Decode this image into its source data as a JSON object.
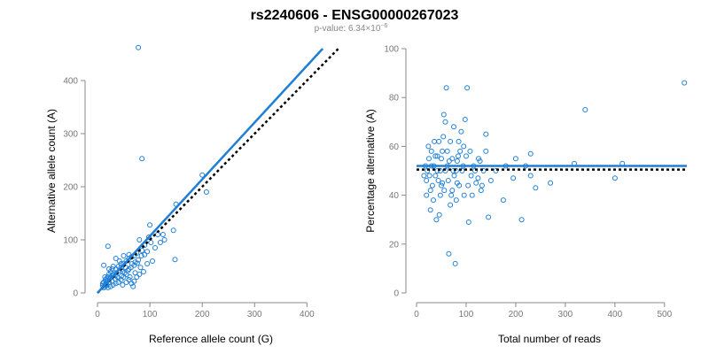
{
  "header": {
    "title": "rs2240606 - ENSG00000267023",
    "pvalue_label": "p-value: 6.34×10",
    "pvalue_exponent": "−6"
  },
  "colors": {
    "points": "#1f7fd6",
    "fit_line": "#1f7fd6",
    "reference_line": "#000000"
  },
  "chart_data": [
    {
      "type": "scatter",
      "title": "",
      "xlabel": "Reference allele count (G)",
      "ylabel": "Alternative allele count (A)",
      "xlim": [
        0,
        440
      ],
      "ylim": [
        0,
        460
      ],
      "xticks": [
        0,
        100,
        200,
        300,
        400
      ],
      "yticks": [
        0,
        100,
        200,
        300,
        400
      ],
      "fit_line": {
        "x": [
          0,
          430
        ],
        "y": [
          0,
          460
        ]
      },
      "reference_line": {
        "x": [
          0,
          460
        ],
        "y": [
          0,
          460
        ]
      },
      "points": [
        [
          78,
          462
        ],
        [
          85,
          253
        ],
        [
          200,
          222
        ],
        [
          208,
          190
        ],
        [
          150,
          167
        ],
        [
          148,
          63
        ],
        [
          145,
          118
        ],
        [
          125,
          110
        ],
        [
          128,
          100
        ],
        [
          115,
          110
        ],
        [
          100,
          128
        ],
        [
          98,
          105
        ],
        [
          102,
          95
        ],
        [
          90,
          90
        ],
        [
          85,
          80
        ],
        [
          80,
          100
        ],
        [
          75,
          75
        ],
        [
          70,
          70
        ],
        [
          65,
          68
        ],
        [
          60,
          65
        ],
        [
          55,
          60
        ],
        [
          50,
          55
        ],
        [
          45,
          55
        ],
        [
          40,
          50
        ],
        [
          35,
          45
        ],
        [
          30,
          50
        ],
        [
          28,
          45
        ],
        [
          25,
          40
        ],
        [
          22,
          35
        ],
        [
          20,
          30
        ],
        [
          18,
          28
        ],
        [
          15,
          25
        ],
        [
          12,
          20
        ],
        [
          10,
          18
        ],
        [
          14,
          15
        ],
        [
          18,
          22
        ],
        [
          24,
          28
        ],
        [
          30,
          32
        ],
        [
          36,
          38
        ],
        [
          42,
          42
        ],
        [
          48,
          40
        ],
        [
          54,
          48
        ],
        [
          60,
          45
        ],
        [
          66,
          55
        ],
        [
          72,
          58
        ],
        [
          78,
          62
        ],
        [
          84,
          70
        ],
        [
          90,
          72
        ],
        [
          95,
          78
        ],
        [
          110,
          85
        ],
        [
          120,
          95
        ],
        [
          105,
          60
        ],
        [
          95,
          55
        ],
        [
          88,
          40
        ],
        [
          80,
          35
        ],
        [
          75,
          30
        ],
        [
          70,
          22
        ],
        [
          65,
          18
        ],
        [
          60,
          25
        ],
        [
          55,
          35
        ],
        [
          50,
          30
        ],
        [
          45,
          25
        ],
        [
          40,
          20
        ],
        [
          35,
          18
        ],
        [
          30,
          15
        ],
        [
          25,
          12
        ],
        [
          20,
          10
        ],
        [
          15,
          12
        ],
        [
          12,
          10
        ],
        [
          10,
          14
        ],
        [
          16,
          18
        ],
        [
          22,
          20
        ],
        [
          28,
          22
        ],
        [
          34,
          26
        ],
        [
          40,
          28
        ],
        [
          46,
          32
        ],
        [
          52,
          38
        ],
        [
          58,
          42
        ],
        [
          64,
          48
        ],
        [
          70,
          52
        ],
        [
          76,
          56
        ],
        [
          82,
          48
        ],
        [
          20,
          88
        ],
        [
          12,
          52
        ],
        [
          35,
          65
        ],
        [
          50,
          70
        ],
        [
          60,
          72
        ],
        [
          45,
          48
        ],
        [
          25,
          30
        ],
        [
          18,
          15
        ],
        [
          14,
          30
        ],
        [
          22,
          45
        ],
        [
          30,
          35
        ],
        [
          38,
          30
        ],
        [
          55,
          20
        ],
        [
          68,
          12
        ],
        [
          72,
          38
        ],
        [
          62,
          30
        ],
        [
          48,
          15
        ],
        [
          42,
          60
        ]
      ]
    },
    {
      "type": "scatter",
      "title": "",
      "xlabel": "Total number of reads",
      "ylabel": "Percentage alternative (A)",
      "xlim": [
        0,
        545
      ],
      "ylim": [
        0,
        100
      ],
      "xticks": [
        0,
        100,
        200,
        300,
        400,
        500
      ],
      "yticks": [
        0,
        20,
        40,
        60,
        80,
        100
      ],
      "fit_line": {
        "x": [
          0,
          545
        ],
        "y": [
          52,
          52
        ]
      },
      "reference_line": {
        "x": [
          0,
          545
        ],
        "y": [
          50.5,
          50.5
        ]
      },
      "points": [
        [
          540,
          86
        ],
        [
          340,
          75
        ],
        [
          415,
          53
        ],
        [
          400,
          47
        ],
        [
          318,
          53
        ],
        [
          270,
          45
        ],
        [
          240,
          43
        ],
        [
          230,
          48
        ],
        [
          212,
          30
        ],
        [
          230,
          57
        ],
        [
          220,
          52
        ],
        [
          200,
          55
        ],
        [
          195,
          47
        ],
        [
          180,
          52
        ],
        [
          175,
          38
        ],
        [
          160,
          50
        ],
        [
          150,
          46
        ],
        [
          145,
          31
        ],
        [
          140,
          65
        ],
        [
          140,
          58
        ],
        [
          135,
          50
        ],
        [
          130,
          42
        ],
        [
          125,
          55
        ],
        [
          120,
          45
        ],
        [
          115,
          52
        ],
        [
          110,
          48
        ],
        [
          105,
          29
        ],
        [
          102,
          84
        ],
        [
          98,
          71
        ],
        [
          95,
          60
        ],
        [
          92,
          50
        ],
        [
          90,
          66
        ],
        [
          88,
          58
        ],
        [
          85,
          62
        ],
        [
          82,
          45
        ],
        [
          80,
          50
        ],
        [
          78,
          12
        ],
        [
          75,
          68
        ],
        [
          72,
          55
        ],
        [
          70,
          40
        ],
        [
          68,
          36
        ],
        [
          65,
          16
        ],
        [
          62,
          58
        ],
        [
          60,
          84
        ],
        [
          58,
          70
        ],
        [
          55,
          73
        ],
        [
          52,
          45
        ],
        [
          50,
          55
        ],
        [
          48,
          40
        ],
        [
          45,
          62
        ],
        [
          42,
          50
        ],
        [
          40,
          30
        ],
        [
          38,
          48
        ],
        [
          35,
          52
        ],
        [
          32,
          44
        ],
        [
          30,
          58
        ],
        [
          28,
          42
        ],
        [
          25,
          55
        ],
        [
          22,
          50
        ],
        [
          20,
          46
        ],
        [
          18,
          52
        ],
        [
          15,
          48
        ],
        [
          24,
          60
        ],
        [
          28,
          34
        ],
        [
          34,
          38
        ],
        [
          36,
          62
        ],
        [
          42,
          56
        ],
        [
          46,
          32
        ],
        [
          50,
          44
        ],
        [
          54,
          64
        ],
        [
          58,
          50
        ],
        [
          64,
          46
        ],
        [
          66,
          54
        ],
        [
          72,
          42
        ],
        [
          76,
          48
        ],
        [
          80,
          38
        ],
        [
          84,
          56
        ],
        [
          86,
          44
        ],
        [
          94,
          52
        ],
        [
          96,
          40
        ],
        [
          100,
          56
        ],
        [
          104,
          44
        ],
        [
          108,
          58
        ],
        [
          112,
          40
        ],
        [
          118,
          50
        ],
        [
          124,
          47
        ],
        [
          128,
          54
        ],
        [
          132,
          44
        ],
        [
          20,
          40
        ],
        [
          26,
          48
        ],
        [
          30,
          52
        ],
        [
          38,
          56
        ],
        [
          44,
          46
        ],
        [
          48,
          50
        ],
        [
          52,
          58
        ],
        [
          56,
          42
        ],
        [
          62,
          52
        ],
        [
          68,
          62
        ],
        [
          74,
          50
        ],
        [
          82,
          54
        ]
      ]
    }
  ]
}
